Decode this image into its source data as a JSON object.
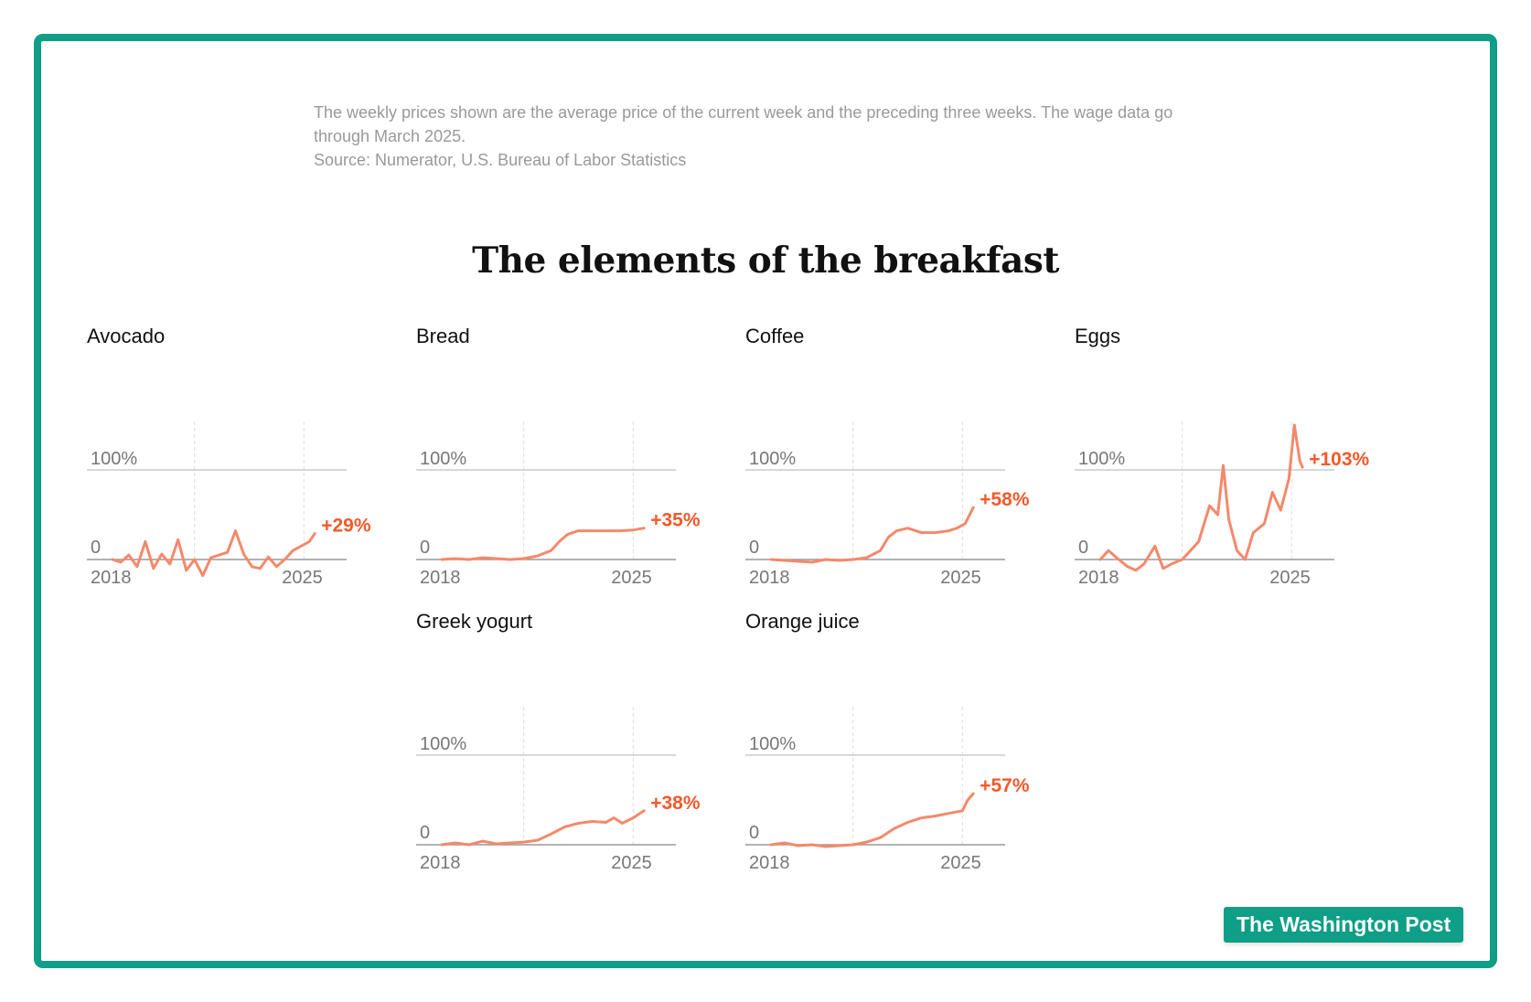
{
  "note": {
    "line1": "The weekly prices shown are the average price of the current week and the preceding three weeks. The wage data go",
    "line2": "through March 2025.",
    "source": "Source: Numerator, U.S. Bureau of Labor Statistics"
  },
  "title": "The elements of the breakfast",
  "brand": "The Washington Post",
  "colors": {
    "frame": "#0f9e86",
    "line": "#f4896b",
    "change": "#f2592b",
    "grid": "#cccccc",
    "axis": "#999999"
  },
  "chart_data": [
    {
      "type": "line",
      "title": "Avocado",
      "change_label": "+29%",
      "y_ticks": [
        "100%",
        "0"
      ],
      "x_ticks": [
        "2018",
        "2025"
      ],
      "ylim": [
        -20,
        140
      ],
      "xlim": [
        2018,
        2027.5
      ],
      "x": [
        2018,
        2018.3,
        2018.6,
        2018.9,
        2019.2,
        2019.5,
        2019.8,
        2020.1,
        2020.4,
        2020.7,
        2021.0,
        2021.3,
        2021.6,
        2021.9,
        2022.2,
        2022.5,
        2022.8,
        2023.1,
        2023.4,
        2023.7,
        2024.0,
        2024.3,
        2024.6,
        2024.9,
        2025.2,
        2025.4
      ],
      "y": [
        0,
        -3,
        5,
        -8,
        20,
        -10,
        6,
        -5,
        22,
        -12,
        0,
        -18,
        2,
        5,
        8,
        32,
        6,
        -8,
        -10,
        3,
        -8,
        0,
        10,
        15,
        20,
        29
      ]
    },
    {
      "type": "line",
      "title": "Bread",
      "change_label": "+35%",
      "y_ticks": [
        "100%",
        "0"
      ],
      "x_ticks": [
        "2018",
        "2025"
      ],
      "ylim": [
        -20,
        140
      ],
      "xlim": [
        2018,
        2027.5
      ],
      "x": [
        2018,
        2018.5,
        2019,
        2019.5,
        2020,
        2020.5,
        2021,
        2021.5,
        2022,
        2022.3,
        2022.6,
        2023,
        2023.5,
        2024,
        2024.5,
        2025,
        2025.4
      ],
      "y": [
        0,
        1,
        0,
        2,
        1,
        0,
        1,
        4,
        10,
        20,
        28,
        32,
        32,
        32,
        32,
        33,
        35
      ]
    },
    {
      "type": "line",
      "title": "Coffee",
      "change_label": "+58%",
      "y_ticks": [
        "100%",
        "0"
      ],
      "x_ticks": [
        "2018",
        "2025"
      ],
      "ylim": [
        -20,
        140
      ],
      "xlim": [
        2018,
        2027.5
      ],
      "x": [
        2018,
        2018.5,
        2019,
        2019.5,
        2020,
        2020.5,
        2021,
        2021.5,
        2022,
        2022.3,
        2022.6,
        2023,
        2023.5,
        2024,
        2024.5,
        2024.8,
        2025.1,
        2025.4
      ],
      "y": [
        0,
        -1,
        -2,
        -3,
        0,
        -1,
        0,
        2,
        10,
        25,
        32,
        35,
        30,
        30,
        32,
        35,
        40,
        58
      ]
    },
    {
      "type": "line",
      "title": "Eggs",
      "change_label": "+103%",
      "y_ticks": [
        "100%",
        "0"
      ],
      "x_ticks": [
        "2018",
        "2025"
      ],
      "ylim": [
        -20,
        140
      ],
      "xlim": [
        2018,
        2027.5
      ],
      "x": [
        2018,
        2018.3,
        2018.6,
        2019,
        2019.3,
        2019.6,
        2020,
        2020.3,
        2020.6,
        2021,
        2021.3,
        2021.6,
        2022,
        2022.3,
        2022.5,
        2022.7,
        2023,
        2023.3,
        2023.6,
        2024,
        2024.3,
        2024.6,
        2024.9,
        2025.1,
        2025.3,
        2025.4
      ],
      "y": [
        0,
        10,
        2,
        -8,
        -12,
        -5,
        15,
        -10,
        -5,
        0,
        10,
        20,
        60,
        50,
        105,
        45,
        10,
        0,
        30,
        40,
        75,
        55,
        90,
        150,
        110,
        103
      ]
    },
    {
      "type": "line",
      "title": "Greek yogurt",
      "change_label": "+38%",
      "y_ticks": [
        "100%",
        "0"
      ],
      "x_ticks": [
        "2018",
        "2025"
      ],
      "ylim": [
        -20,
        140
      ],
      "xlim": [
        2018,
        2027.5
      ],
      "x": [
        2018,
        2018.5,
        2019,
        2019.5,
        2020,
        2020.5,
        2021,
        2021.5,
        2022,
        2022.5,
        2023,
        2023.5,
        2024,
        2024.3,
        2024.6,
        2025,
        2025.4
      ],
      "y": [
        0,
        2,
        0,
        4,
        1,
        2,
        3,
        5,
        12,
        20,
        24,
        26,
        25,
        30,
        24,
        30,
        38
      ]
    },
    {
      "type": "line",
      "title": "Orange juice",
      "change_label": "+57%",
      "y_ticks": [
        "100%",
        "0"
      ],
      "x_ticks": [
        "2018",
        "2025"
      ],
      "ylim": [
        -20,
        140
      ],
      "xlim": [
        2018,
        2027.5
      ],
      "x": [
        2018,
        2018.5,
        2019,
        2019.5,
        2020,
        2020.5,
        2021,
        2021.5,
        2022,
        2022.5,
        2023,
        2023.5,
        2024,
        2024.5,
        2025,
        2025.2,
        2025.4
      ],
      "y": [
        0,
        2,
        -1,
        0,
        -2,
        -1,
        0,
        3,
        8,
        18,
        25,
        30,
        32,
        35,
        38,
        50,
        57
      ]
    }
  ]
}
